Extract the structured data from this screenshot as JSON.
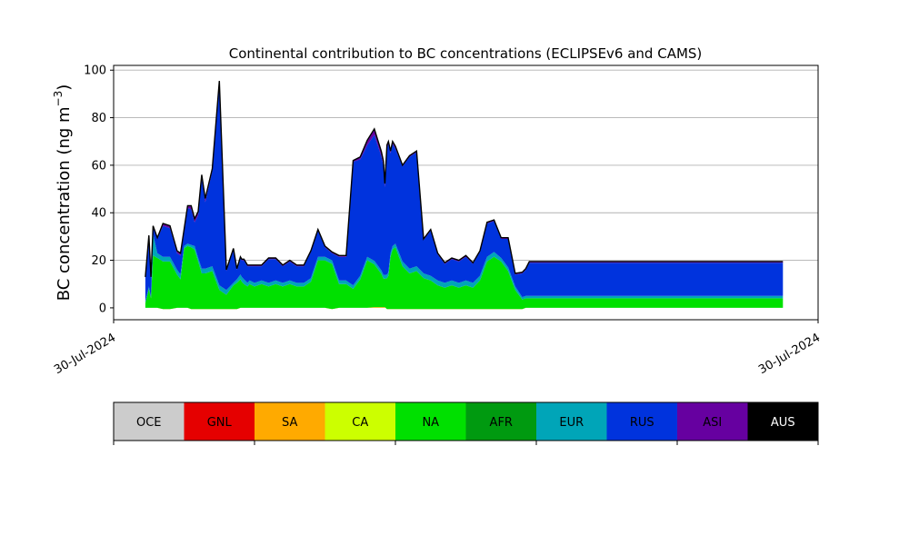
{
  "chart_data": {
    "type": "area",
    "title": "Continental contribution to BC concentrations (ECLIPSEv6 and CAMS)",
    "ylabel": "BC concentration (ng m",
    "ylabel_sup": "−3",
    "ylabel_close": ")",
    "xlabel": "",
    "ylim": [
      -5,
      102
    ],
    "xlim": [
      0,
      100
    ],
    "yticks": [
      0,
      20,
      40,
      60,
      80,
      100
    ],
    "xtick_labels": [
      "30-Jul-2024",
      "30-Jul-2024"
    ],
    "grid": "horizontal",
    "stack_order": [
      "SA",
      "CA",
      "NA",
      "AFR",
      "EUR",
      "RUS",
      "ASI"
    ],
    "x": [
      4.5,
      5,
      5.3,
      5.6,
      6.2,
      7,
      8,
      9,
      9.5,
      10,
      10.5,
      11,
      11.5,
      12,
      12.5,
      13,
      14,
      15,
      16,
      17,
      17.5,
      18,
      18.2,
      18.5,
      19,
      19.3,
      20,
      21,
      22,
      23,
      24,
      25,
      26,
      27,
      28,
      29,
      30,
      31,
      32,
      33,
      34,
      35,
      36,
      37,
      38,
      38.3,
      38.5,
      38.8,
      39,
      39.3,
      39.6,
      40,
      41,
      42,
      43,
      44,
      45,
      46,
      47,
      48,
      49,
      50,
      51,
      52,
      53,
      54,
      55,
      56,
      57,
      58,
      58.5,
      59,
      59.5,
      60,
      61,
      70,
      80,
      90,
      95
    ],
    "series": [
      {
        "name": "SA",
        "values": [
          0,
          0,
          0,
          0,
          0,
          -0.5,
          -0.5,
          0,
          0,
          0,
          0,
          -0.5,
          -0.5,
          -0.5,
          -0.5,
          -0.5,
          -0.5,
          -0.5,
          -0.5,
          -0.5,
          -0.5,
          0,
          0,
          0,
          0,
          0,
          0,
          0,
          0,
          0,
          0,
          0,
          0,
          0,
          0,
          0,
          0,
          -0.5,
          0,
          0,
          0,
          0,
          0,
          0.3,
          0.3,
          0.3,
          0.3,
          -0.5,
          -0.5,
          -0.5,
          -0.5,
          -0.5,
          -0.5,
          -0.5,
          -0.5,
          -0.5,
          -0.5,
          -0.5,
          -0.5,
          -0.5,
          -0.5,
          -0.5,
          -0.5,
          -0.5,
          -0.5,
          -0.5,
          -0.5,
          -0.5,
          -0.5,
          -0.5,
          0,
          0,
          0,
          0,
          0,
          0,
          0,
          0,
          0
        ]
      },
      {
        "name": "CA",
        "values": [
          0,
          0,
          0,
          0,
          0,
          0,
          0,
          0,
          0,
          0,
          0,
          0,
          0,
          0,
          0,
          0,
          0,
          0,
          0,
          0,
          0,
          0,
          0,
          0,
          0,
          0,
          0,
          0,
          0,
          0,
          0,
          0,
          0,
          0,
          0,
          0,
          0,
          0,
          0,
          0,
          0,
          0,
          0,
          0,
          0,
          0,
          0,
          0,
          0,
          0,
          0,
          0,
          0,
          0,
          0,
          0,
          0,
          0,
          0,
          0,
          0,
          0,
          0,
          0,
          0,
          0,
          0,
          0,
          0,
          0,
          0,
          0,
          0,
          0,
          0,
          0,
          0,
          0,
          0
        ]
      },
      {
        "name": "NA",
        "values": [
          2,
          8,
          4,
          22,
          21,
          20,
          20,
          14,
          12,
          25,
          26,
          26,
          25,
          20,
          15,
          15,
          16,
          8,
          6,
          10,
          11,
          12,
          11,
          10,
          9,
          10,
          9,
          10,
          9,
          10,
          9,
          10,
          9,
          9,
          11,
          20,
          20,
          19,
          10,
          10,
          8,
          12,
          20,
          18,
          14,
          12,
          12,
          13,
          14,
          22,
          25,
          26,
          18,
          15,
          16,
          13,
          12,
          10,
          9,
          10,
          9,
          10,
          9,
          12,
          20,
          22,
          20,
          16,
          8,
          4,
          4,
          4,
          4,
          4,
          4,
          4,
          4,
          4,
          4
        ]
      },
      {
        "name": "AFR",
        "values": [
          0,
          0,
          0,
          0,
          0,
          0,
          0,
          0,
          0,
          0,
          0,
          0,
          0,
          0,
          0,
          0,
          0,
          0,
          0,
          0,
          0,
          0,
          0,
          0,
          0,
          0,
          0,
          0,
          0,
          0,
          0,
          0,
          0,
          0,
          0,
          0,
          0,
          0,
          0,
          0,
          0,
          0,
          0,
          0,
          0,
          0,
          0,
          0,
          0,
          0,
          0,
          0,
          0,
          0,
          0,
          0,
          0,
          0,
          0,
          0,
          0,
          0,
          0,
          0,
          0,
          0,
          0,
          0,
          0,
          0,
          0,
          0,
          0,
          0,
          0,
          0,
          0,
          0,
          0
        ]
      },
      {
        "name": "EUR",
        "values": [
          0.5,
          1,
          0.5,
          9,
          2,
          2,
          2,
          2,
          2,
          1,
          1,
          1,
          1.5,
          1.5,
          2,
          2,
          2,
          2,
          2,
          1,
          1.5,
          2,
          2,
          2,
          1.5,
          1.5,
          1.5,
          1.5,
          1.5,
          1.5,
          1.5,
          1.5,
          1.5,
          1.5,
          1.5,
          1.5,
          1.5,
          1.5,
          1.5,
          1.5,
          1.5,
          1.5,
          1.5,
          1.5,
          1.5,
          1.5,
          1.5,
          1.5,
          1.5,
          1.5,
          1.5,
          1.5,
          2,
          2,
          2,
          2,
          2,
          2,
          2,
          2,
          2,
          2,
          2,
          2,
          2,
          2,
          1.5,
          1.5,
          1.5,
          1,
          1,
          1,
          1,
          1,
          1,
          1,
          1,
          1,
          1
        ]
      },
      {
        "name": "RUS",
        "values": [
          10,
          21,
          8,
          3,
          6,
          13,
          12,
          7,
          8,
          6,
          15,
          15,
          10,
          18,
          38,
          28,
          40,
          85,
          8,
          14,
          4,
          7,
          7,
          8,
          7,
          6,
          7,
          6,
          10,
          9,
          7,
          8,
          7,
          7,
          11,
          11,
          4,
          3,
          10,
          10,
          52,
          49,
          47,
          53,
          48,
          46,
          37,
          53,
          54,
          42,
          43,
          40,
          40,
          47,
          48,
          14,
          19,
          11,
          8,
          9,
          9,
          10,
          8,
          10,
          14,
          13,
          8,
          12,
          5,
          10,
          11,
          14,
          14,
          14,
          14,
          14,
          14,
          14,
          14
        ]
      },
      {
        "name": "ASI",
        "values": [
          0.5,
          0.5,
          0.5,
          0.5,
          0.5,
          1,
          1,
          1,
          1,
          1,
          1,
          1.5,
          1.5,
          1.5,
          1.5,
          1.5,
          1,
          1,
          0.5,
          0.5,
          0.5,
          0.5,
          0.5,
          0.5,
          0.5,
          0.5,
          0.5,
          0.5,
          0.5,
          0.5,
          0.5,
          0.5,
          0.5,
          0.5,
          0.5,
          0.5,
          0.5,
          0.5,
          0.5,
          0.5,
          0.5,
          1,
          2,
          2.5,
          2,
          2,
          1.5,
          1.5,
          1,
          1,
          1,
          1,
          0.5,
          0.5,
          0.5,
          0.5,
          0.5,
          0.5,
          0.5,
          0.5,
          0.5,
          0.5,
          0.5,
          0.5,
          0.5,
          0.5,
          0.5,
          0.5,
          0.5,
          0.5,
          0.5,
          0.5,
          0.5,
          0.5,
          0.5,
          0.5,
          0.5,
          0.5,
          0.5
        ]
      }
    ]
  },
  "legend": {
    "items": [
      {
        "label": "OCE",
        "color": "#cccccc",
        "text_color": "#000000"
      },
      {
        "label": "GNL",
        "color": "#e50000",
        "text_color": "#000000"
      },
      {
        "label": "SA",
        "color": "#ffaa00",
        "text_color": "#000000"
      },
      {
        "label": "CA",
        "color": "#ccff00",
        "text_color": "#000000"
      },
      {
        "label": "NA",
        "color": "#00e000",
        "text_color": "#000000"
      },
      {
        "label": "AFR",
        "color": "#009a10",
        "text_color": "#000000"
      },
      {
        "label": "EUR",
        "color": "#00a5b8",
        "text_color": "#000000"
      },
      {
        "label": "RUS",
        "color": "#0033dd",
        "text_color": "#000000"
      },
      {
        "label": "ASI",
        "color": "#6600a0",
        "text_color": "#000000"
      },
      {
        "label": "AUS",
        "color": "#000000",
        "text_color": "#ffffff"
      }
    ]
  }
}
